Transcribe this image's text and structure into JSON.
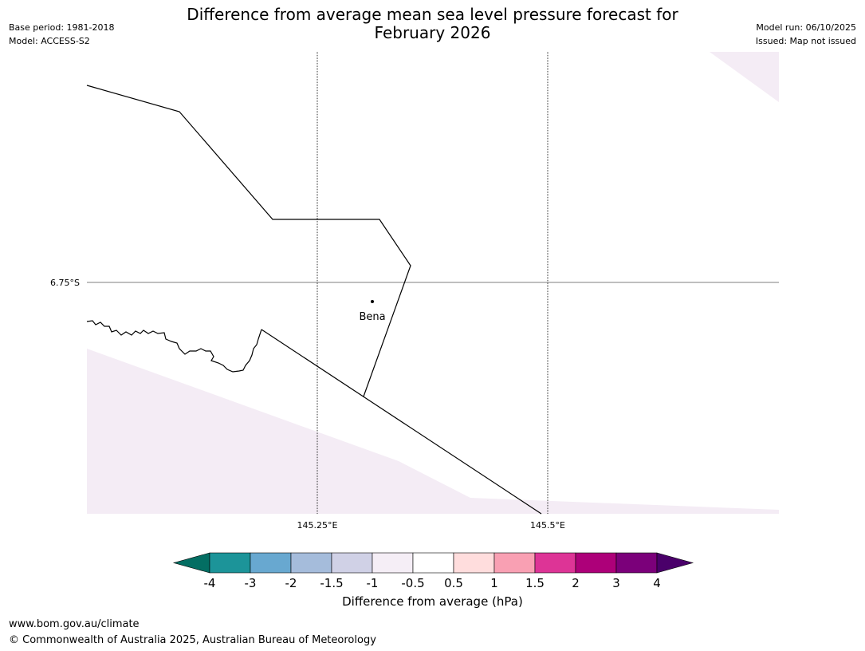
{
  "header": {
    "base_period": "Base period: 1981-2018",
    "model": "Model: ACCESS-S2",
    "title_line1": "Difference from average mean sea level pressure forecast for",
    "title_line2": "February 2026",
    "model_run": "Model run: 06/10/2025",
    "issued": "Issued: Map not issued"
  },
  "map": {
    "lat_label": "6.75°S",
    "lon_labels": [
      "145.25°E",
      "145.5°E"
    ],
    "place": "Bena",
    "colors": {
      "light_fill": "#f4ecf5",
      "line": "#000000",
      "grid": "#000000"
    }
  },
  "colorbar": {
    "ticks": [
      "-4",
      "-3",
      "-2",
      "-1.5",
      "-1",
      "-0.5",
      "0.5",
      "1",
      "1.5",
      "2",
      "3",
      "4"
    ],
    "colors": [
      "#036e63",
      "#1c9499",
      "#68a8d0",
      "#a5bcdb",
      "#d0d1e6",
      "#f5eef6",
      "#ffffff",
      "#ffdddd",
      "#f9a0b3",
      "#dd3496",
      "#ad0079",
      "#7b007a",
      "#4a006a"
    ],
    "label": "Difference from average (hPa)"
  },
  "footer": {
    "url": "www.bom.gov.au/climate",
    "copyright": "© Commonwealth of Australia 2025, Australian Bureau of Meteorology"
  }
}
